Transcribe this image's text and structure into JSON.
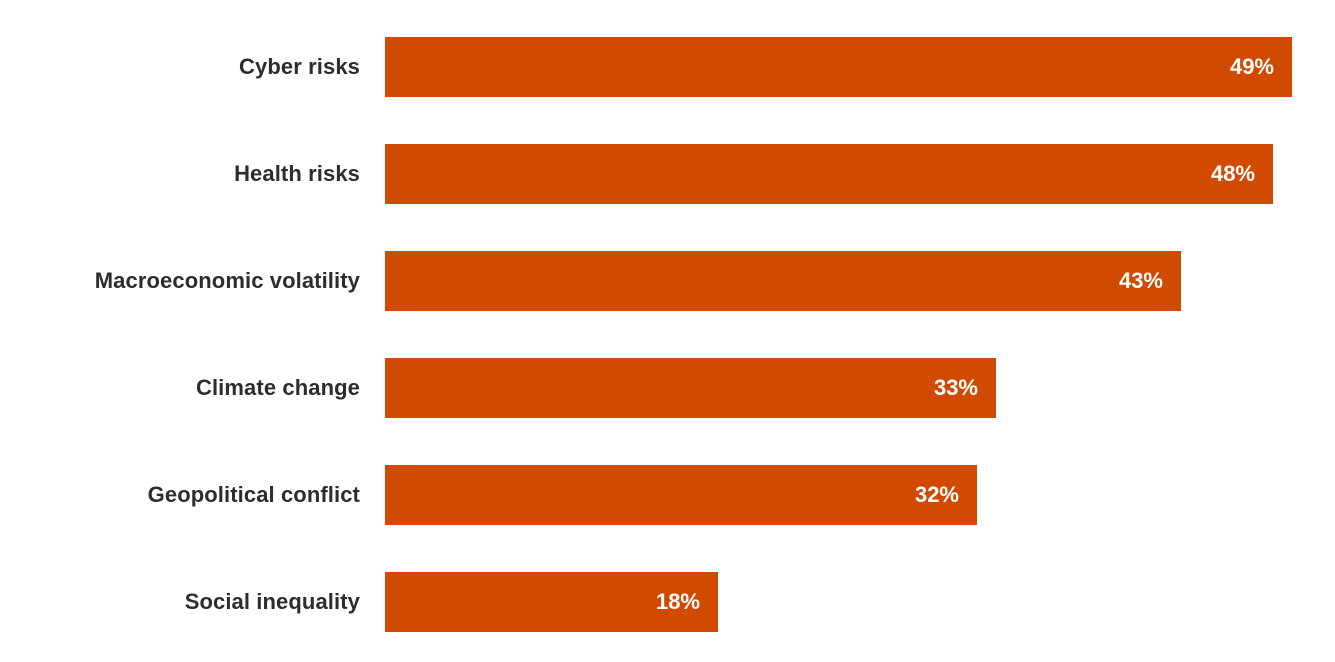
{
  "chart_data": {
    "type": "bar",
    "orientation": "horizontal",
    "title": "",
    "xlabel": "",
    "ylabel": "",
    "grid": false,
    "legend": false,
    "axis_ticks_visible": false,
    "categories": [
      "Cyber risks",
      "Health risks",
      "Macroeconomic volatility",
      "Climate change",
      "Geopolitical conflict",
      "Social inequality"
    ],
    "values": [
      49,
      48,
      43,
      33,
      32,
      18
    ],
    "value_labels": [
      "49%",
      "48%",
      "43%",
      "33%",
      "32%",
      "18%"
    ],
    "value_label_position": "inside-end",
    "bar_color": "#D04A02",
    "category_label_color": "#2D2D2D",
    "value_label_color": "#FFFFFF",
    "background_color": "#FFFFFF"
  }
}
